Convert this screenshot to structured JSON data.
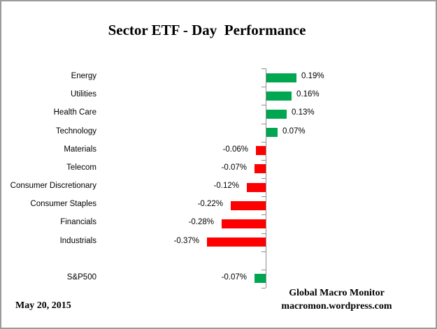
{
  "title": "Sector ETF - Day  Performance",
  "footer": {
    "date": "May 20, 2015",
    "brand_line1": "Global Macro Monitor",
    "brand_line2": "macromon.wordpress.com"
  },
  "colors": {
    "positive_green": "#00a650",
    "negative_red": "#ff0000",
    "axis_gray": "#8c8c8c",
    "frame_border": "#9b9b9b",
    "text": "#000000"
  },
  "chart_data": {
    "type": "bar",
    "orientation": "horizontal",
    "title": "Sector ETF - Day  Performance",
    "xlabel": "",
    "ylabel": "",
    "grid": false,
    "legend": null,
    "xlim": [
      -0.45,
      0.3
    ],
    "unit": "percent",
    "categories": [
      "Energy",
      "Utilities",
      "Health Care",
      "Technology",
      "Materials",
      "Telecom",
      "Consumer Discretionary",
      "Consumer Staples",
      "Financials",
      "Industrials",
      "",
      "S&P500"
    ],
    "values": [
      0.19,
      0.16,
      0.13,
      0.07,
      -0.06,
      -0.07,
      -0.12,
      -0.22,
      -0.28,
      -0.37,
      null,
      -0.07
    ],
    "labels_display": [
      "0.19%",
      "0.16%",
      "0.13%",
      "0.07%",
      "-0.06%",
      "-0.07%",
      "-0.12%",
      "-0.22%",
      "-0.28%",
      "-0.37%",
      "",
      "-0.07%"
    ],
    "bar_colors": [
      "green",
      "green",
      "green",
      "green",
      "red",
      "red",
      "red",
      "red",
      "red",
      "red",
      null,
      "green"
    ]
  }
}
